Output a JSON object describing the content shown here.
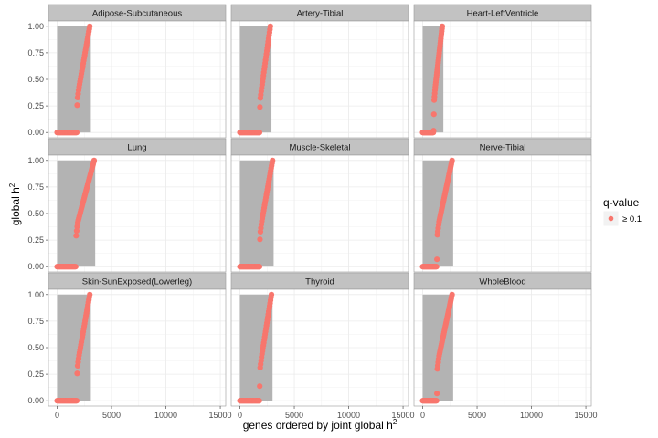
{
  "chart_data": {
    "type": "scatter",
    "xlabel": "genes ordered by joint global h",
    "xlabel_sup": "2",
    "ylabel": "global h",
    "ylabel_sup": "2",
    "xlim": [
      -800,
      15500
    ],
    "ylim": [
      -0.05,
      1.05
    ],
    "x_ticks": [
      0,
      5000,
      10000,
      15000
    ],
    "x_tick_labels": [
      "0",
      "5000",
      "10000",
      "15000"
    ],
    "y_ticks": [
      0,
      0.25,
      0.5,
      0.75,
      1.0
    ],
    "y_tick_labels": [
      "0.00",
      "0.25",
      "0.50",
      "0.75",
      "1.00"
    ],
    "grid": true,
    "legend": {
      "title": "q-value",
      "position": "right",
      "entries": [
        {
          "label": "≥ 0.1",
          "color": "#F8766D"
        }
      ]
    },
    "colors": {
      "points": "#F8766D",
      "bars": "#b3b3b3",
      "strip": "#c2c2c2"
    },
    "panels": [
      {
        "name": "Adipose-Subcutaneous",
        "curve": [
          [
            0,
            0
          ],
          [
            1800,
            0
          ],
          [
            1850,
            0.3
          ],
          [
            2000,
            0.42
          ],
          [
            3000,
            1.0
          ]
        ],
        "bar_width": 3100
      },
      {
        "name": "Artery-Tibial",
        "curve": [
          [
            0,
            0
          ],
          [
            1800,
            0
          ],
          [
            1850,
            0.3
          ],
          [
            2000,
            0.42
          ],
          [
            2800,
            1.0
          ]
        ],
        "bar_width": 2900
      },
      {
        "name": "Heart-LeftVentricle",
        "curve": [
          [
            0,
            0
          ],
          [
            1000,
            0
          ],
          [
            1050,
            0.3
          ],
          [
            1150,
            0.42
          ],
          [
            1800,
            1.0
          ]
        ],
        "bar_width": 1900
      },
      {
        "name": "Lung",
        "curve": [
          [
            0,
            0
          ],
          [
            1700,
            0
          ],
          [
            1750,
            0.3
          ],
          [
            1900,
            0.42
          ],
          [
            3400,
            1.0
          ]
        ],
        "bar_width": 3500
      },
      {
        "name": "Muscle-Skeletal",
        "curve": [
          [
            0,
            0
          ],
          [
            1800,
            0
          ],
          [
            1850,
            0.3
          ],
          [
            2000,
            0.42
          ],
          [
            3000,
            1.0
          ]
        ],
        "bar_width": 3100
      },
      {
        "name": "Nerve-Tibial",
        "curve": [
          [
            0,
            0
          ],
          [
            1300,
            0
          ],
          [
            1350,
            0.3
          ],
          [
            1500,
            0.42
          ],
          [
            2700,
            1.0
          ]
        ],
        "bar_width": 2800
      },
      {
        "name": "Skin-SunExposed(Lowerleg)",
        "curve": [
          [
            0,
            0
          ],
          [
            1800,
            0
          ],
          [
            1850,
            0.3
          ],
          [
            2000,
            0.42
          ],
          [
            3000,
            1.0
          ]
        ],
        "bar_width": 3100
      },
      {
        "name": "Thyroid",
        "curve": [
          [
            0,
            0
          ],
          [
            1800,
            0
          ],
          [
            1850,
            0.3
          ],
          [
            2000,
            0.42
          ],
          [
            2900,
            1.0
          ]
        ],
        "bar_width": 3000
      },
      {
        "name": "WholeBlood",
        "curve": [
          [
            0,
            0
          ],
          [
            1300,
            0
          ],
          [
            1350,
            0.3
          ],
          [
            1500,
            0.42
          ],
          [
            2700,
            1.0
          ]
        ],
        "bar_width": 2800
      }
    ]
  }
}
